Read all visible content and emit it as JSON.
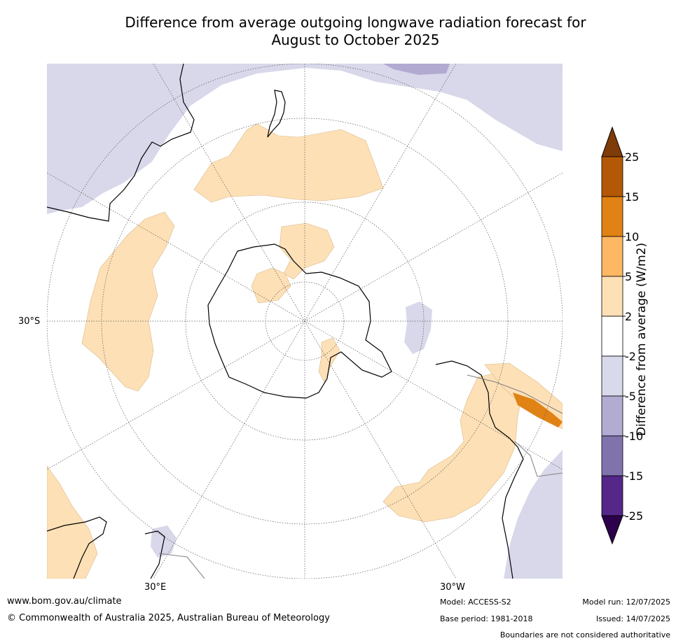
{
  "title": {
    "line1": "Difference from average outgoing longwave radiation forecast for",
    "line2": "August to October 2025"
  },
  "map": {
    "projection": "south polar stereographic",
    "lat_label": "30°S",
    "lon_label_left": "30°E",
    "lon_label_right": "30°W",
    "colors": {
      "ocean": "#ffffff",
      "neg_2_5": "#d8d8ea",
      "neg_5_10": "#b2aad0",
      "pos_2_5": "#fde0b6",
      "pos_5_10": "#feb863",
      "pos_10_15": "#e08214",
      "coast": "#000000",
      "boundary": "#808080"
    }
  },
  "colorbar": {
    "label": "Difference from average (W/m2)",
    "ticks": [
      "25",
      "15",
      "10",
      "5",
      "2",
      "-2",
      "-5",
      "-10",
      "-15",
      "-25"
    ],
    "bins": [
      {
        "color": "#b35806"
      },
      {
        "color": "#e08214"
      },
      {
        "color": "#feb863"
      },
      {
        "color": "#fde0b6"
      },
      {
        "color": "#ffffff"
      },
      {
        "color": "#d8daeb"
      },
      {
        "color": "#b2abd2"
      },
      {
        "color": "#8073ac"
      },
      {
        "color": "#542788"
      }
    ],
    "extend_max_color": "#7f3b08",
    "extend_min_color": "#2d004b"
  },
  "footer": {
    "url": "www.bom.gov.au/climate",
    "copyright": "© Commonwealth of Australia 2025, Australian Bureau of Meteorology",
    "model": "Model: ACCESS-S2",
    "base_period": "Base period: 1981-2018",
    "model_run": "Model run: 12/07/2025",
    "issued": "Issued: 14/07/2025",
    "disclaimer": "Boundaries are not considered authoritative"
  }
}
